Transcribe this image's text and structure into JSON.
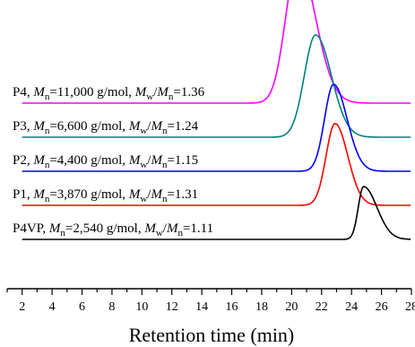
{
  "chart_data": {
    "type": "line",
    "xlabel": "Retention time (min)",
    "ylabel": "",
    "xlim": [
      1,
      28
    ],
    "x_ticks": [
      "2",
      "4",
      "6",
      "8",
      "10",
      "12",
      "14",
      "16",
      "18",
      "20",
      "22",
      "24",
      "26",
      "28"
    ],
    "grid": false,
    "legend": "none",
    "series": [
      {
        "name": "P4",
        "label": {
          "prefix": "P4, ",
          "m": "M",
          "n_sub": "n",
          "mn_value": "=11,000 g/mol, ",
          "w_sub": "w",
          "slash": "/",
          "pdi": "=1.36"
        },
        "color": "#ff00ff",
        "baseline": 5,
        "peak_x": 20.4,
        "peak_height": 4.15,
        "sigma_left": 0.8,
        "sigma_right": 1.2,
        "onset_x": 17.5
      },
      {
        "name": "P3",
        "label": {
          "prefix": "P3, ",
          "m": "M",
          "n_sub": "n",
          "mn_value": "=6,600 g/mol, ",
          "w_sub": "w",
          "slash": "/",
          "pdi": "=1.24"
        },
        "color": "#008080",
        "baseline": 4,
        "peak_x": 21.6,
        "peak_height": 3.0,
        "sigma_left": 0.75,
        "sigma_right": 1.05,
        "onset_x": 18.8
      },
      {
        "name": "P2",
        "label": {
          "prefix": "P2, ",
          "m": "M",
          "n_sub": "n",
          "mn_value": "=4,400 g/mol, ",
          "w_sub": "w",
          "slash": "/",
          "pdi": "=1.15"
        },
        "color": "#0000ff",
        "baseline": 3,
        "peak_x": 22.8,
        "peak_height": 2.55,
        "sigma_left": 0.6,
        "sigma_right": 0.9,
        "onset_x": 20.5
      },
      {
        "name": "P1",
        "label": {
          "prefix": "P1, ",
          "m": "M",
          "n_sub": "n",
          "mn_value": "=3,870 g/mol, ",
          "w_sub": "w",
          "slash": "/",
          "pdi": "=1.31"
        },
        "color": "#ff0000",
        "baseline": 2,
        "peak_x": 22.9,
        "peak_height": 2.4,
        "sigma_left": 0.6,
        "sigma_right": 0.85,
        "onset_x": 20.7
      },
      {
        "name": "P4VP",
        "label": {
          "prefix": "P4VP, ",
          "m": "M",
          "n_sub": "n",
          "mn_value": "=2,540 g/mol, ",
          "w_sub": "w",
          "slash": "/",
          "pdi": "=1.11"
        },
        "color": "#000000",
        "baseline": 1,
        "peak_x": 24.8,
        "peak_height": 1.55,
        "sigma_left": 0.35,
        "sigma_right": 0.9,
        "onset_x": 24.0
      }
    ]
  }
}
